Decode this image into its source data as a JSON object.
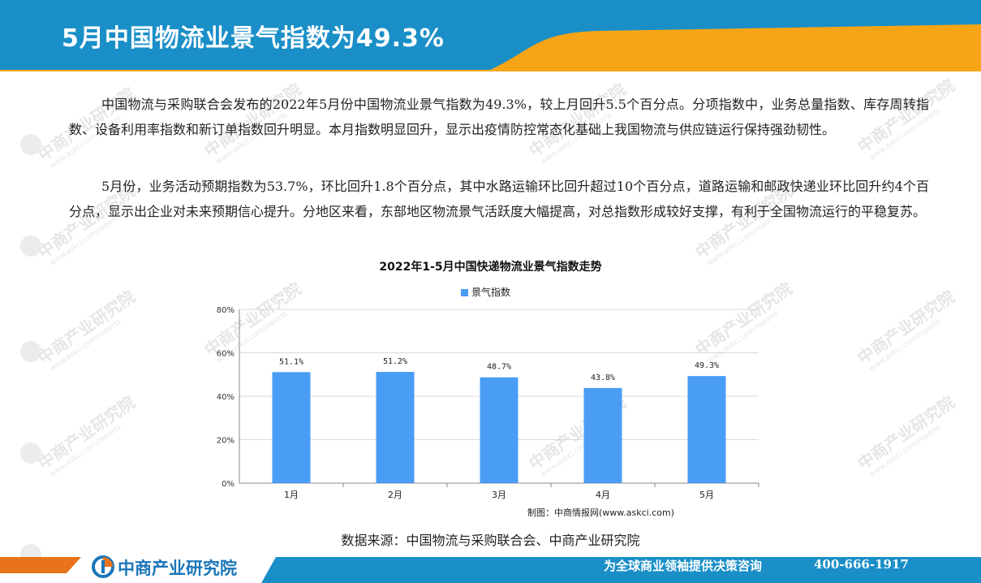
{
  "header": {
    "title": "5月中国物流业景气指数为49.3%",
    "colors": {
      "blue": "#1a8fc7",
      "orange": "#f7a516"
    }
  },
  "watermark": {
    "text": "中商产业研究院",
    "url": "www.askci.com/reports"
  },
  "body": {
    "paragraph1": "中国物流与采购联合会发布的2022年5月份中国物流业景气指数为49.3%，较上月回升5.5个百分点。分项指数中，业务总量指数、库存周转指数、设备利用率指数和新订单指数回升明显。本月指数明显回升，显示出疫情防控常态化基础上我国物流与供应链运行保持强劲韧性。",
    "paragraph2": "5月份，业务活动预期指数为53.7%，环比回升1.8个百分点，其中水路运输环比回升超过10个百分点，道路运输和邮政快递业环比回升约4个百分点，显示出企业对未来预期信心提升。分地区来看，东部地区物流景气活跃度大幅提高，对总指数形成较好支撑，有利于全国物流运行的平稳复苏。"
  },
  "chart_data": {
    "type": "bar",
    "title": "2022年1-5月中国快递物流业景气指数走势",
    "categories": [
      "1月",
      "2月",
      "3月",
      "4月",
      "5月"
    ],
    "series": [
      {
        "name": "景气指数",
        "values": [
          51.1,
          51.2,
          48.7,
          43.8,
          49.3
        ],
        "color": "#4a9df5"
      }
    ],
    "data_labels": [
      "51.1%",
      "51.2%",
      "48.7%",
      "43.8%",
      "49.3%"
    ],
    "y_ticks": [
      "0%",
      "20%",
      "40%",
      "60%",
      "80%"
    ],
    "ylim": [
      0,
      80
    ],
    "grid": true,
    "legend_position": "top-center",
    "credit": "制图：中商情报网(www.askci.com)"
  },
  "source": "数据来源：中国物流与采购联合会、中商产业研究院",
  "footer": {
    "brand": "中商产业研究院",
    "slogan": "为全球商业领袖提供决策咨询",
    "phone": "400-666-1917",
    "colors": {
      "orange": "#e8731a",
      "blue": "#1a8fc7"
    }
  }
}
